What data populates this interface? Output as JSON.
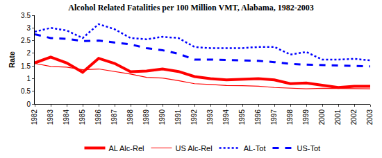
{
  "chart_data": {
    "type": "line",
    "title": "Alcohol Related Fatalities per 100 Million VMT, Alabama, 1982-2003",
    "y_label": "Rate",
    "categories": [
      "1982",
      "1983",
      "1984",
      "1985",
      "1986",
      "1987",
      "1988",
      "1989",
      "1990",
      "1991",
      "1992",
      "1993",
      "1994",
      "1995",
      "1996",
      "1997",
      "1998",
      "1999",
      "2000",
      "2001",
      "2002",
      "2003"
    ],
    "series": [
      {
        "name": "AL Alc-Rel",
        "color": "#ff0000",
        "line_style": "solid",
        "values": [
          1.62,
          1.85,
          1.62,
          1.25,
          1.8,
          1.6,
          1.27,
          1.3,
          1.38,
          1.28,
          1.08,
          1.0,
          0.95,
          0.97,
          1.0,
          0.95,
          0.8,
          0.83,
          0.75,
          0.65,
          0.7,
          0.7
        ]
      },
      {
        "name": "US Alc-Rel",
        "color": "#ff0000",
        "line_style": "solid",
        "values": [
          1.6,
          1.48,
          1.45,
          1.35,
          1.38,
          1.28,
          1.18,
          1.05,
          1.02,
          0.92,
          0.8,
          0.77,
          0.73,
          0.72,
          0.7,
          0.65,
          0.62,
          0.6,
          0.62,
          0.62,
          0.62,
          0.6
        ]
      },
      {
        "name": "AL-Tot",
        "color": "#0000ff",
        "line_style": "dot",
        "values": [
          2.85,
          3.0,
          2.9,
          2.6,
          3.15,
          2.95,
          2.6,
          2.55,
          2.65,
          2.6,
          2.25,
          2.2,
          2.2,
          2.2,
          2.25,
          2.25,
          1.95,
          2.05,
          1.75,
          1.75,
          1.78,
          1.72
        ]
      },
      {
        "name": "US-Tot",
        "color": "#0000ff",
        "line_style": "dash",
        "values": [
          2.75,
          2.6,
          2.57,
          2.48,
          2.5,
          2.42,
          2.35,
          2.2,
          2.12,
          1.98,
          1.75,
          1.75,
          1.73,
          1.73,
          1.7,
          1.65,
          1.58,
          1.55,
          1.53,
          1.51,
          1.51,
          1.48
        ]
      }
    ],
    "ylim": [
      0,
      3.5
    ],
    "yticks": [
      0,
      0.5,
      1,
      1.5,
      2,
      2.5,
      3,
      3.5
    ],
    "grid": false,
    "legend": "bottom",
    "marker": "none"
  }
}
